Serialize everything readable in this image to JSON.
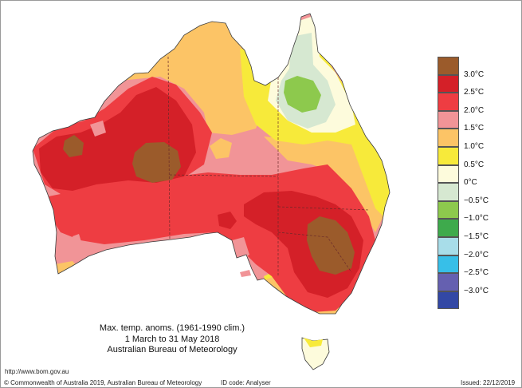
{
  "caption": {
    "line1": "Max. temp. anoms. (1961-1990 clim.)",
    "line2": "1 March to 31 May 2018",
    "line3": "Australian Bureau of Meteorology"
  },
  "legend": {
    "labels": [
      "3.0°C",
      "2.5°C",
      "2.0°C",
      "1.5°C",
      "1.0°C",
      "0.5°C",
      "0°C",
      "−0.5°C",
      "−1.0°C",
      "−1.5°C",
      "−2.0°C",
      "−2.5°C",
      "−3.0°C"
    ],
    "colors": [
      "#9b5b2b",
      "#d42028",
      "#ee3d42",
      "#f19497",
      "#fcc466",
      "#f7ea3a",
      "#fdfbdc",
      "#d6e8d1",
      "#8dc94d",
      "#3eaa4c",
      "#a8dde9",
      "#37bfe8",
      "#6560b0",
      "#3348a5"
    ]
  },
  "map_colors": {
    "anom_3_0_plus": "#9b5b2b",
    "anom_2_5": "#d42028",
    "anom_2_0": "#ee3d42",
    "anom_1_5": "#f19497",
    "anom_1_0": "#fcc466",
    "anom_0_5": "#f7ea3a",
    "anom_0_0": "#fdfbdc",
    "anom_neg_0_5": "#d6e8d1",
    "anom_neg_1_0": "#8dc94d"
  },
  "footer": {
    "url": "http://www.bom.gov.au",
    "copyright": "© Commonwealth of Australia 2019, Australian Bureau of Meteorology",
    "id_code": "ID code: Analyser",
    "issued": "Issued: 22/12/2019"
  }
}
